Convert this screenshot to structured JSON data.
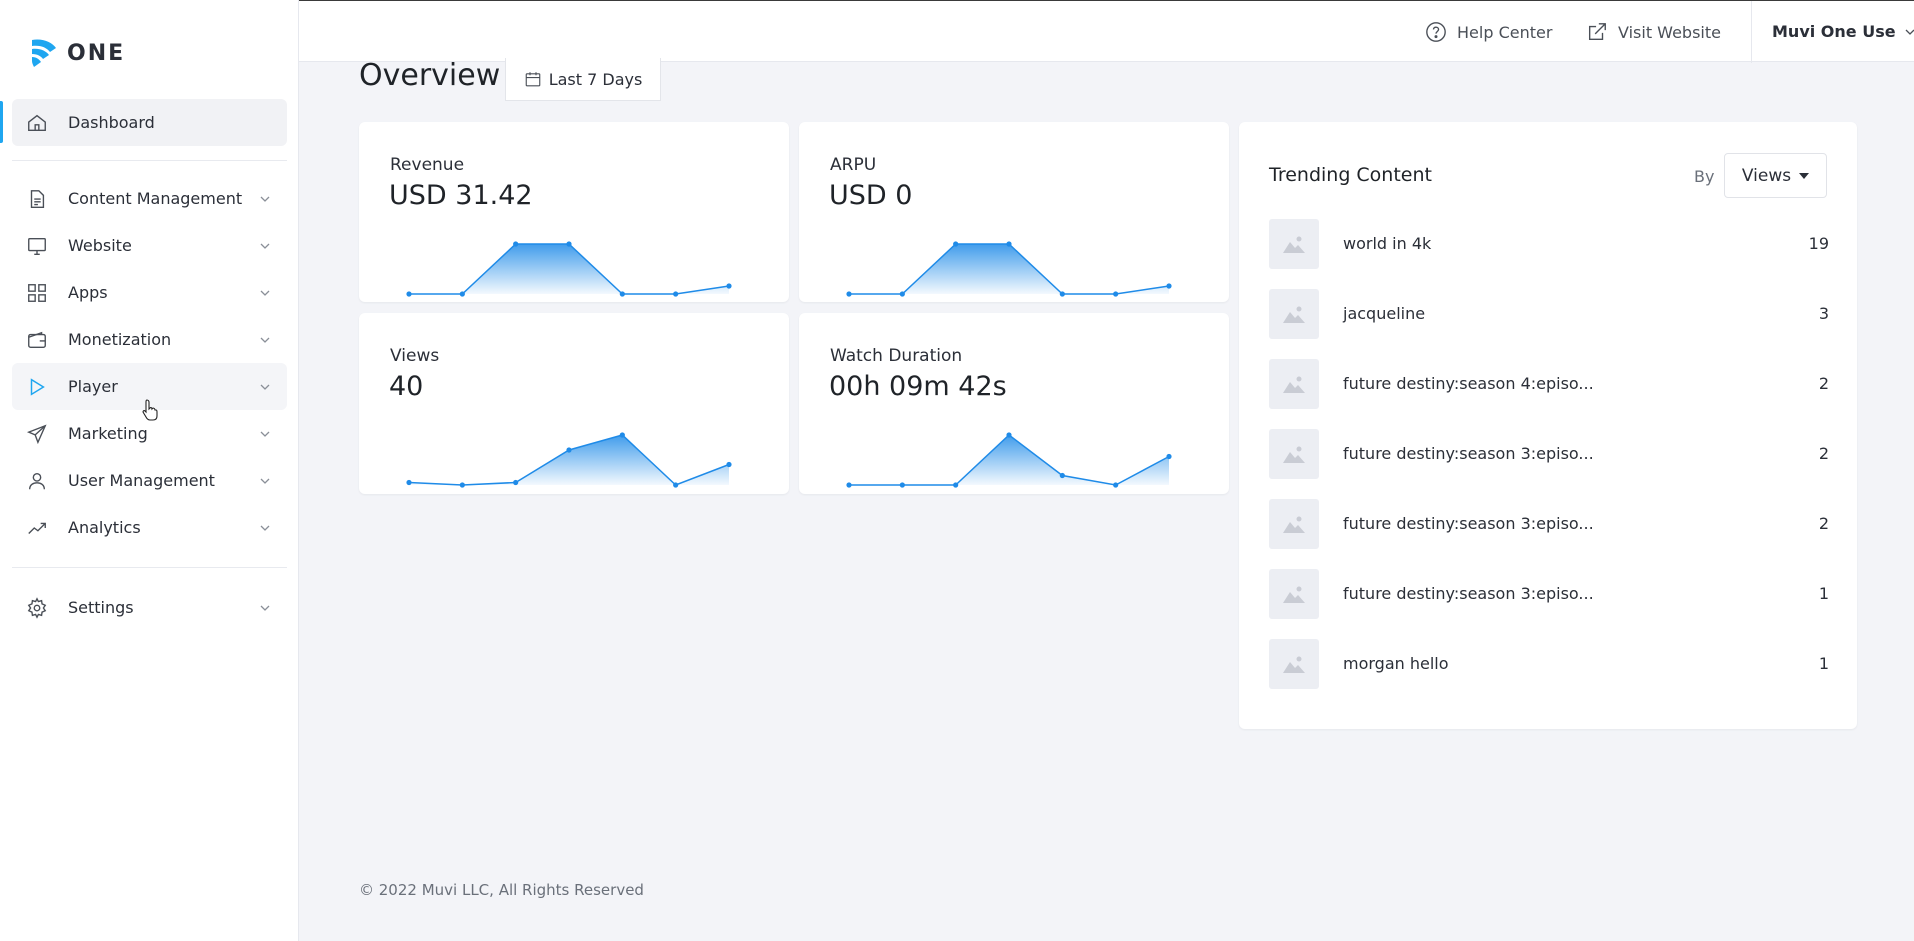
{
  "brand": {
    "logo_text": "ONE",
    "accent": "#1fa6f0"
  },
  "sidebar": {
    "items": [
      {
        "label": "Dashboard",
        "icon": "home-icon"
      },
      {
        "label": "Content Management",
        "icon": "document-icon"
      },
      {
        "label": "Website",
        "icon": "monitor-icon"
      },
      {
        "label": "Apps",
        "icon": "grid-icon"
      },
      {
        "label": "Monetization",
        "icon": "wallet-icon"
      },
      {
        "label": "Player",
        "icon": "play-icon"
      },
      {
        "label": "Marketing",
        "icon": "send-icon"
      },
      {
        "label": "User Management",
        "icon": "user-icon"
      },
      {
        "label": "Analytics",
        "icon": "trend-up-icon"
      },
      {
        "label": "Settings",
        "icon": "gear-icon"
      }
    ]
  },
  "topbar": {
    "help_label": "Help Center",
    "visit_label": "Visit Website",
    "user_label": "Muvi One Use"
  },
  "overview": {
    "title": "Overview",
    "range_label": "Last 7 Days"
  },
  "cards": [
    {
      "title": "Revenue",
      "value": "USD 31.42",
      "spark": [
        0,
        0,
        1,
        1,
        0,
        0,
        0.16
      ]
    },
    {
      "title": "ARPU",
      "value": "USD 0",
      "spark": [
        0,
        0,
        1,
        1,
        0,
        0,
        0.16
      ]
    },
    {
      "title": "Views",
      "value": "40",
      "spark": [
        0.05,
        0,
        0.05,
        0.7,
        1,
        0,
        0.41
      ]
    },
    {
      "title": "Watch Duration",
      "value": "00h 09m 42s",
      "spark": [
        0,
        0,
        0,
        1,
        0.19,
        0,
        0.57
      ]
    }
  ],
  "trending": {
    "title": "Trending Content",
    "by_label": "By",
    "sort_value": "Views",
    "items": [
      {
        "name": "world in 4k",
        "count": "19"
      },
      {
        "name": "jacqueline",
        "count": "3"
      },
      {
        "name": "future destiny:season 4:episo...",
        "count": "2"
      },
      {
        "name": "future destiny:season 3:episo...",
        "count": "2"
      },
      {
        "name": "future destiny:season 3:episo...",
        "count": "2"
      },
      {
        "name": "future destiny:season 3:episo...",
        "count": "1"
      },
      {
        "name": "morgan hello",
        "count": "1"
      }
    ]
  },
  "footer": {
    "text": "© 2022 Muvi LLC, All Rights Reserved"
  }
}
